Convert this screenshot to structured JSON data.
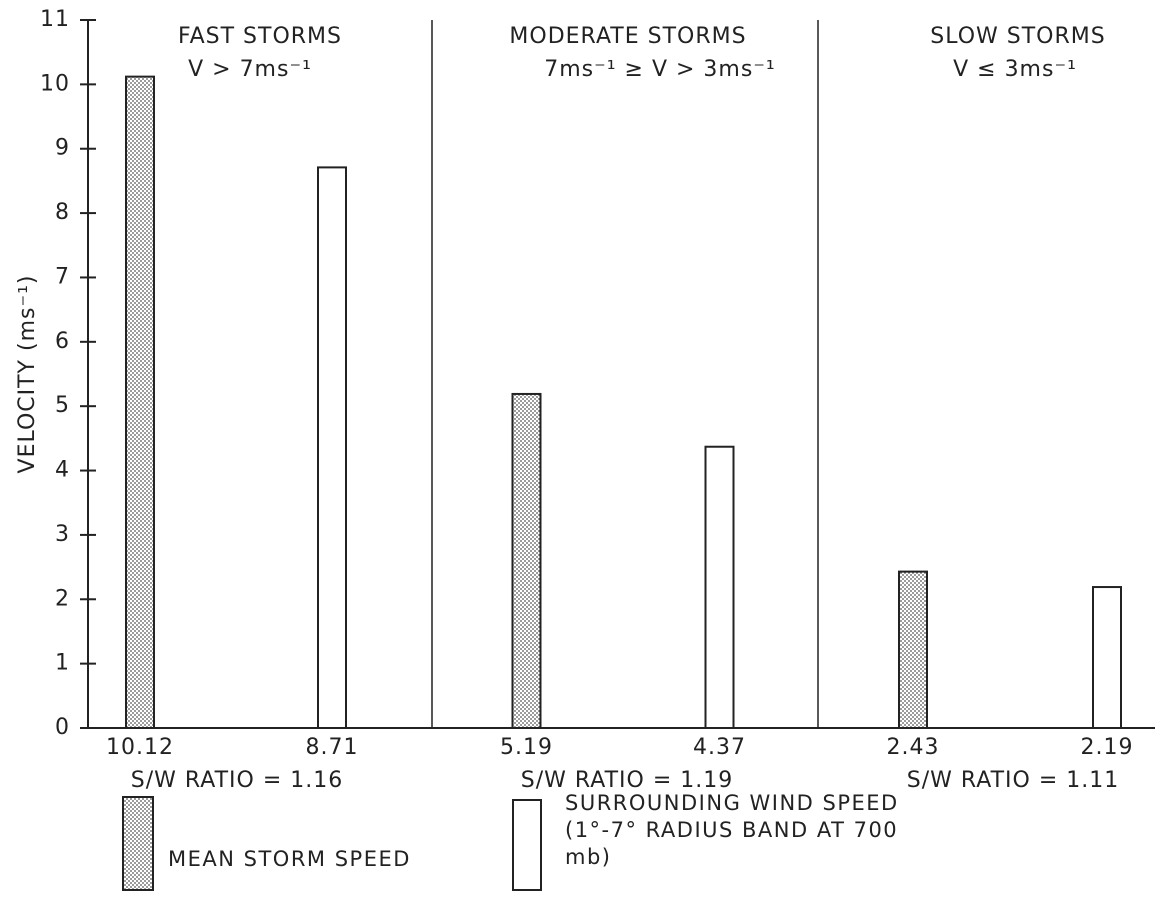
{
  "chart_data": {
    "type": "bar",
    "categories": [
      "FAST STORMS",
      "MODERATE STORMS",
      "SLOW STORMS"
    ],
    "subtitles": [
      "V > 7ms⁻¹",
      "7ms⁻¹ ≥ V > 3ms⁻¹",
      "V ≤ 3ms⁻¹"
    ],
    "ratio_labels": [
      "S/W RATIO = 1.16",
      "S/W RATIO = 1.19",
      "S/W RATIO = 1.11"
    ],
    "y_label": "VELOCITY (ms⁻¹)",
    "series": [
      {
        "name": "MEAN STORM SPEED",
        "color": "#555555",
        "fill_pattern": "dots",
        "values": [
          10.12,
          5.19,
          2.43
        ]
      },
      {
        "name": "SURROUNDING WIND SPEED (1°-7° RADIUS BAND AT 700 mb)",
        "color": "#ffffff",
        "values": [
          8.71,
          4.37,
          2.19
        ]
      }
    ],
    "ylim": [
      0,
      11
    ],
    "yticks": [
      0,
      1,
      2,
      3,
      4,
      5,
      6,
      7,
      8,
      9,
      10,
      11
    ]
  }
}
